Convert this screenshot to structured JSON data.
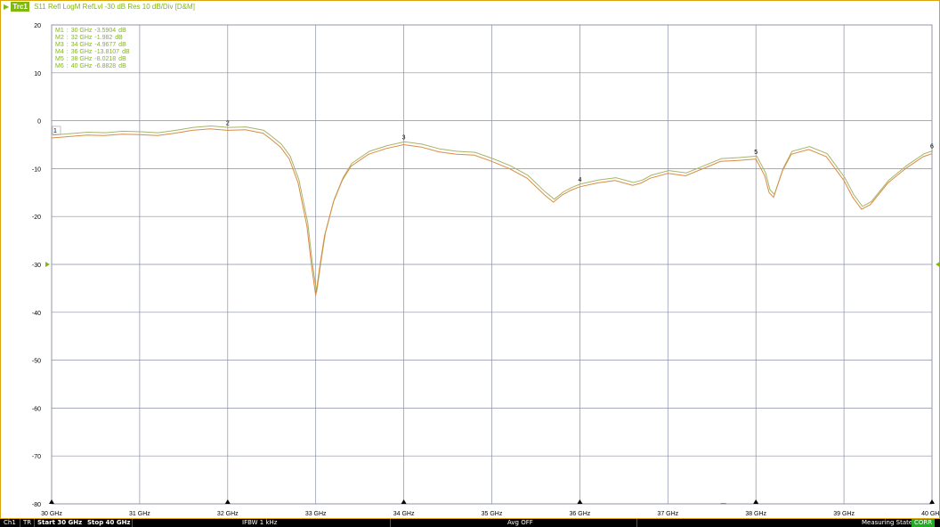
{
  "trace_header": {
    "arrow": "▶",
    "trace_id": "Trc1",
    "text": "S11 Refl LogM RefLvl -30  dB Res  10  dB/Div  [D&M]"
  },
  "markers": [
    {
      "label": "M1",
      "freq": "30 GHz",
      "value": "-3.5904",
      "unit": "dB",
      "x": 30,
      "y": -3.5904
    },
    {
      "label": "M2",
      "freq": "32 GHz",
      "value": "-1.982",
      "unit": "dB",
      "x": 32,
      "y": -1.982
    },
    {
      "label": "M3",
      "freq": "34 GHz",
      "value": "-4.9677",
      "unit": "dB",
      "x": 34,
      "y": -4.9677
    },
    {
      "label": "M4",
      "freq": "36 GHz",
      "value": "-13.8107",
      "unit": "dB",
      "x": 36,
      "y": -13.8107
    },
    {
      "label": "M5",
      "freq": "38 GHz",
      "value": "-8.0218",
      "unit": "dB",
      "x": 38,
      "y": -8.0218
    },
    {
      "label": "M6",
      "freq": "40 GHz",
      "value": "-6.8828",
      "unit": "dB",
      "x": 40,
      "y": -6.8828
    }
  ],
  "status_bar": {
    "channel": "Ch1",
    "trace_mode": "TR",
    "start": "Start 30 GHz",
    "stop": "Stop 40 GHz",
    "ifbw": "IFBW 1 kHz",
    "avg": "Avg OFF",
    "state": "Measuring State",
    "corr": "CORR"
  },
  "colors": {
    "frame": "#d9a40f",
    "trace_measured": "#d98c3f",
    "trace_memory": "#a8b46a",
    "marker_text": "#7fb80e",
    "grid": "#8a8fa6",
    "ref_marker": "#7fb80e"
  },
  "chart_data": {
    "type": "line",
    "xlabel": "",
    "ylabel": "",
    "xlim": [
      30,
      40
    ],
    "ylim": [
      -80,
      20
    ],
    "x_ticks": [
      "30 GHz",
      "31 GHz",
      "32 GHz",
      "33 GHz",
      "34 GHz",
      "35 GHz",
      "36 GHz",
      "37 GHz",
      "38 GHz",
      "39 GHz",
      "40 GHz"
    ],
    "y_ticks": [
      "20",
      "10",
      "0",
      "-10",
      "-20",
      "-30",
      "-40",
      "-50",
      "-60",
      "-70",
      "-80"
    ],
    "reference_level": -30,
    "grid": true,
    "series": [
      {
        "x": [
          30,
          30.2,
          30.4,
          30.6,
          30.8,
          31.0,
          31.2,
          31.4,
          31.6,
          31.8,
          32.0,
          32.2,
          32.4,
          32.5,
          32.6,
          32.7,
          32.8,
          32.9,
          32.95,
          33.0,
          33.05,
          33.1,
          33.2,
          33.3,
          33.4,
          33.6,
          33.8,
          34.0,
          34.2,
          34.4,
          34.6,
          34.8,
          35.0,
          35.2,
          35.4,
          35.6,
          35.7,
          35.8,
          35.9,
          36.0,
          36.2,
          36.4,
          36.6,
          36.7,
          36.8,
          37.0,
          37.2,
          37.4,
          37.6,
          37.8,
          38.0,
          38.1,
          38.15,
          38.2,
          38.3,
          38.4,
          38.6,
          38.8,
          39.0,
          39.1,
          39.2,
          39.3,
          39.5,
          39.7,
          39.9,
          40.0
        ],
        "values": [
          -3.6,
          -3.3,
          -3.0,
          -3.1,
          -2.8,
          -2.9,
          -3.1,
          -2.6,
          -2.0,
          -1.7,
          -2.0,
          -1.9,
          -2.6,
          -4.0,
          -5.5,
          -8.0,
          -13.0,
          -22.0,
          -30.0,
          -36.5,
          -30.0,
          -24.0,
          -17.0,
          -12.5,
          -9.5,
          -7.0,
          -5.8,
          -5.0,
          -5.5,
          -6.5,
          -7.0,
          -7.2,
          -8.5,
          -10.0,
          -12.0,
          -15.5,
          -17.0,
          -15.5,
          -14.5,
          -13.8,
          -13.0,
          -12.5,
          -13.5,
          -13.0,
          -12.0,
          -11.0,
          -11.5,
          -10.0,
          -8.5,
          -8.3,
          -8.0,
          -11.5,
          -15.0,
          -16.0,
          -10.5,
          -7.0,
          -6.0,
          -7.5,
          -12.5,
          -16.0,
          -18.5,
          -17.5,
          -13.0,
          -10.0,
          -7.5,
          -6.9
        ]
      }
    ],
    "marker_numbers": [
      "1",
      "2",
      "3",
      "4",
      "5",
      "6"
    ]
  }
}
